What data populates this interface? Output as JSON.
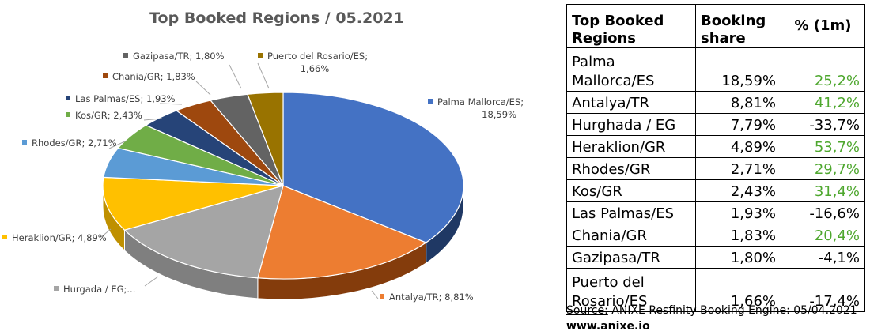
{
  "chart_data": {
    "type": "pie",
    "title": "Top Booked Regions / 05.2021",
    "slices": [
      {
        "label": "Palma Mallorca/ES; 18,59%",
        "value": 18.59,
        "color": "#4472c4",
        "side": "#1f3864"
      },
      {
        "label": "Antalya/TR; 8,81%",
        "value": 8.81,
        "color": "#ed7d31",
        "side": "#843c0c"
      },
      {
        "label": "Hurgada / EG;...",
        "value": 7.79,
        "color": "#a5a5a5",
        "side": "#7f7f7f"
      },
      {
        "label": "Heraklion/GR; 4,89%",
        "value": 4.89,
        "color": "#ffc000",
        "side": "#bf9000"
      },
      {
        "label": "Rhodes/GR; 2,71%",
        "value": 2.71,
        "color": "#5b9bd5",
        "side": "#2e75b6"
      },
      {
        "label": "Kos/GR; 2,43%",
        "value": 2.43,
        "color": "#70ad47",
        "side": "#538135"
      },
      {
        "label": "Las Palmas/ES; 1,93%",
        "value": 1.93,
        "color": "#264478",
        "side": "#1a2f54"
      },
      {
        "label": "Chania/GR; 1,83%",
        "value": 1.83,
        "color": "#9e480e",
        "side": "#6a300a"
      },
      {
        "label": "Gazipasa/TR; 1,80%",
        "value": 1.8,
        "color": "#636363",
        "side": "#404040"
      },
      {
        "label": "Puerto del Rosario/ES; 1,66%",
        "value": 1.66,
        "color": "#997300",
        "side": "#6b5000"
      }
    ]
  },
  "table": {
    "headers": [
      "Top Booked Regions",
      "Booking share",
      "% (1m)"
    ],
    "rows": [
      {
        "region": "Palma Mallorca/ES",
        "share": "18,59%",
        "change": "25,2%",
        "trend": "pos",
        "tall": true
      },
      {
        "region": "Antalya/TR",
        "share": "8,81%",
        "change": "41,2%",
        "trend": "pos",
        "tall": false
      },
      {
        "region": "Hurghada / EG",
        "share": "7,79%",
        "change": "-33,7%",
        "trend": "neg",
        "tall": false
      },
      {
        "region": "Heraklion/GR",
        "share": "4,89%",
        "change": "53,7%",
        "trend": "pos",
        "tall": false
      },
      {
        "region": "Rhodes/GR",
        "share": "2,71%",
        "change": "29,7%",
        "trend": "pos",
        "tall": false
      },
      {
        "region": "Kos/GR",
        "share": "2,43%",
        "change": "31,4%",
        "trend": "pos",
        "tall": false
      },
      {
        "region": "Las Palmas/ES",
        "share": "1,93%",
        "change": "-16,6%",
        "trend": "neg",
        "tall": false
      },
      {
        "region": "Chania/GR",
        "share": "1,83%",
        "change": "20,4%",
        "trend": "pos",
        "tall": false
      },
      {
        "region": "Gazipasa/TR",
        "share": "1,80%",
        "change": "-4,1%",
        "trend": "neg",
        "tall": false
      },
      {
        "region": "Puerto del Rosario/ES",
        "share": "1,66%",
        "change": "-17,4%",
        "trend": "neg",
        "tall": true
      }
    ]
  },
  "footer": {
    "source_label": "Source:",
    "source_text": "ANIXE Resfinity Booking Engine: 05/04.2021",
    "website": "www.anixe.io"
  }
}
